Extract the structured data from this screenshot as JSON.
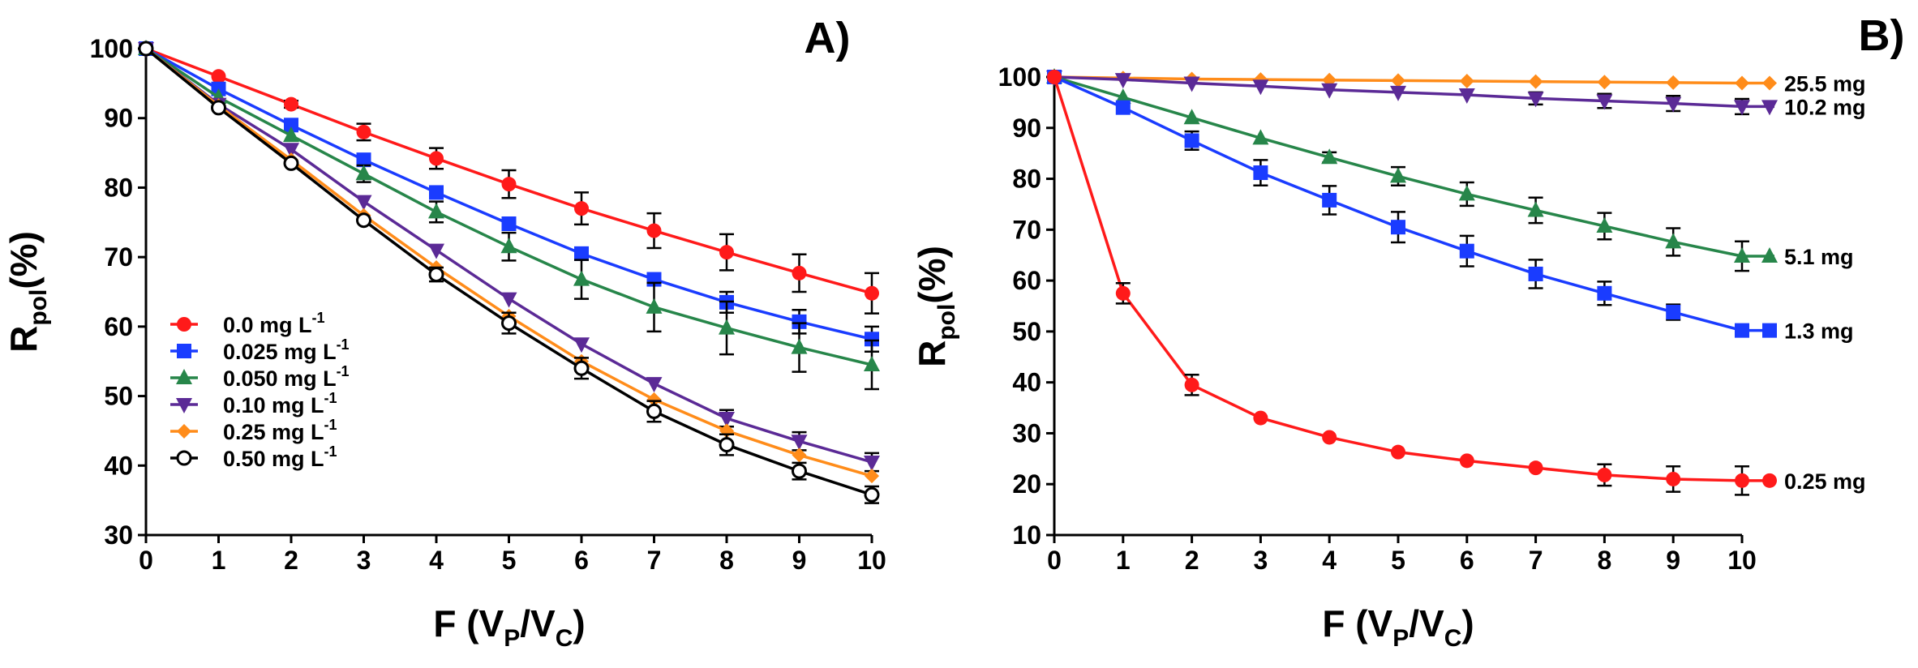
{
  "chart_data": [
    {
      "panel": "A)",
      "type": "line",
      "xlabel": {
        "main": "F (V",
        "sub1": "P",
        "slash": "/V",
        "sub2": "C",
        "close": ")"
      },
      "ylabel": {
        "main": "R",
        "sub": "pol",
        "rest": "(%)"
      },
      "xlim": [
        0,
        10
      ],
      "ylim": [
        30,
        100
      ],
      "xticks": [
        0,
        1,
        2,
        3,
        4,
        5,
        6,
        7,
        8,
        9,
        10
      ],
      "yticks": [
        30,
        40,
        50,
        60,
        70,
        80,
        90,
        100
      ],
      "legend_position": "center-left",
      "x": [
        0,
        1,
        2,
        3,
        4,
        5,
        6,
        7,
        8,
        9,
        10
      ],
      "series": [
        {
          "name": "0.0 mg L",
          "sup": "-1",
          "color": "#ff1a1a",
          "marker": "circle",
          "values": [
            100,
            96,
            92,
            88,
            84.2,
            80.5,
            77,
            73.8,
            70.7,
            67.7,
            64.8
          ],
          "errors": [
            0,
            0,
            0.5,
            1.2,
            1.5,
            2,
            2.3,
            2.5,
            2.6,
            2.7,
            2.9
          ]
        },
        {
          "name": "0.025 mg L",
          "sup": "-1",
          "color": "#1a3cff",
          "marker": "square",
          "values": [
            100,
            94.2,
            89,
            84,
            79.3,
            74.8,
            70.5,
            66.8,
            63.5,
            60.7,
            58.2
          ],
          "errors": [
            0,
            0,
            0,
            0,
            0,
            0,
            0,
            0,
            1.5,
            1.7,
            1.8
          ]
        },
        {
          "name": "0.050 mg L",
          "sup": "-1",
          "color": "#27864a",
          "marker": "triangle-up",
          "values": [
            100,
            93,
            87.5,
            82,
            76.5,
            71.5,
            66.8,
            62.8,
            59.8,
            57,
            54.5
          ],
          "errors": [
            0,
            0,
            0,
            1.2,
            1.5,
            2,
            2.8,
            3.5,
            3.8,
            3.5,
            3.5
          ]
        },
        {
          "name": "0.10 mg L",
          "sup": "-1",
          "color": "#5b2a96",
          "marker": "triangle-down",
          "values": [
            100,
            92,
            85.5,
            78,
            71,
            64,
            57.5,
            51.8,
            46.8,
            43.5,
            40.5
          ],
          "errors": [
            0,
            0,
            0,
            0,
            0,
            0,
            0,
            0,
            1.2,
            1.3,
            1.3
          ]
        },
        {
          "name": "0.25 mg L",
          "sup": "-1",
          "color": "#ff8c1a",
          "marker": "diamond",
          "values": [
            100,
            91.8,
            84,
            76,
            68.5,
            61.5,
            55,
            49.5,
            45,
            41.5,
            38.5
          ],
          "errors": [
            0,
            0,
            0,
            0,
            0,
            0,
            0,
            0,
            0,
            0,
            0
          ]
        },
        {
          "name": "0.50 mg L",
          "sup": "-1",
          "color": "#000000",
          "marker": "open-circle",
          "values": [
            100,
            91.5,
            83.5,
            75.3,
            67.5,
            60.5,
            54,
            47.8,
            43,
            39.2,
            35.8
          ],
          "errors": [
            0,
            0,
            0,
            0,
            1,
            1.5,
            1.5,
            1.5,
            1.5,
            1.2,
            1.2
          ]
        }
      ]
    },
    {
      "panel": "B)",
      "type": "line",
      "xlabel": {
        "main": "F (V",
        "sub1": "P",
        "slash": "/V",
        "sub2": "C",
        "close": ")"
      },
      "ylabel": {
        "main": "R",
        "sub": "pol",
        "rest": "(%)"
      },
      "xlim": [
        0,
        10
      ],
      "ylim": [
        10,
        100
      ],
      "xticks": [
        0,
        1,
        2,
        3,
        4,
        5,
        6,
        7,
        8,
        9,
        10
      ],
      "yticks": [
        10,
        20,
        30,
        40,
        50,
        60,
        70,
        80,
        90,
        100
      ],
      "legend_position": "right (series end labels)",
      "x": [
        0,
        1,
        2,
        3,
        4,
        5,
        6,
        7,
        8,
        9,
        10
      ],
      "series": [
        {
          "name": "25.5 mg",
          "color": "#ff8c1a",
          "marker": "diamond",
          "values": [
            100,
            99.8,
            99.6,
            99.5,
            99.4,
            99.3,
            99.2,
            99.1,
            99,
            98.9,
            98.8
          ],
          "errors": [
            0,
            0,
            0,
            0,
            0,
            0,
            0,
            0,
            0,
            0,
            0
          ]
        },
        {
          "name": "10.2 mg",
          "color": "#5b2a96",
          "marker": "triangle-down",
          "values": [
            100,
            99.5,
            98.8,
            98.2,
            97.5,
            97,
            96.5,
            95.8,
            95.3,
            94.8,
            94.2
          ],
          "errors": [
            0,
            0,
            0,
            0,
            0,
            0,
            0,
            1.2,
            1.4,
            1.5,
            1.5
          ]
        },
        {
          "name": "5.1  mg",
          "color": "#27864a",
          "marker": "triangle-up",
          "values": [
            100,
            96,
            92,
            88,
            84.2,
            80.5,
            77,
            73.8,
            70.7,
            67.6,
            64.8
          ],
          "errors": [
            0,
            0,
            0,
            0,
            1,
            1.8,
            2.3,
            2.5,
            2.6,
            2.7,
            2.9
          ]
        },
        {
          "name": "1.3 mg",
          "color": "#1a3cff",
          "marker": "square",
          "values": [
            100,
            94,
            87.5,
            81.2,
            75.8,
            70.5,
            65.8,
            61.3,
            57.5,
            53.8,
            50.2
          ],
          "errors": [
            0,
            0,
            1.8,
            2.5,
            2.8,
            3,
            3,
            2.8,
            2.3,
            1.5,
            1
          ]
        },
        {
          "name": "0.25 mg",
          "color": "#ff1a1a",
          "marker": "circle",
          "values": [
            100,
            57.5,
            39.5,
            33,
            29.2,
            26.3,
            24.6,
            23.2,
            21.8,
            21,
            20.7
          ],
          "errors": [
            0,
            2,
            2,
            0,
            0,
            0,
            0,
            0,
            2.1,
            2.5,
            2.8
          ]
        }
      ]
    }
  ]
}
